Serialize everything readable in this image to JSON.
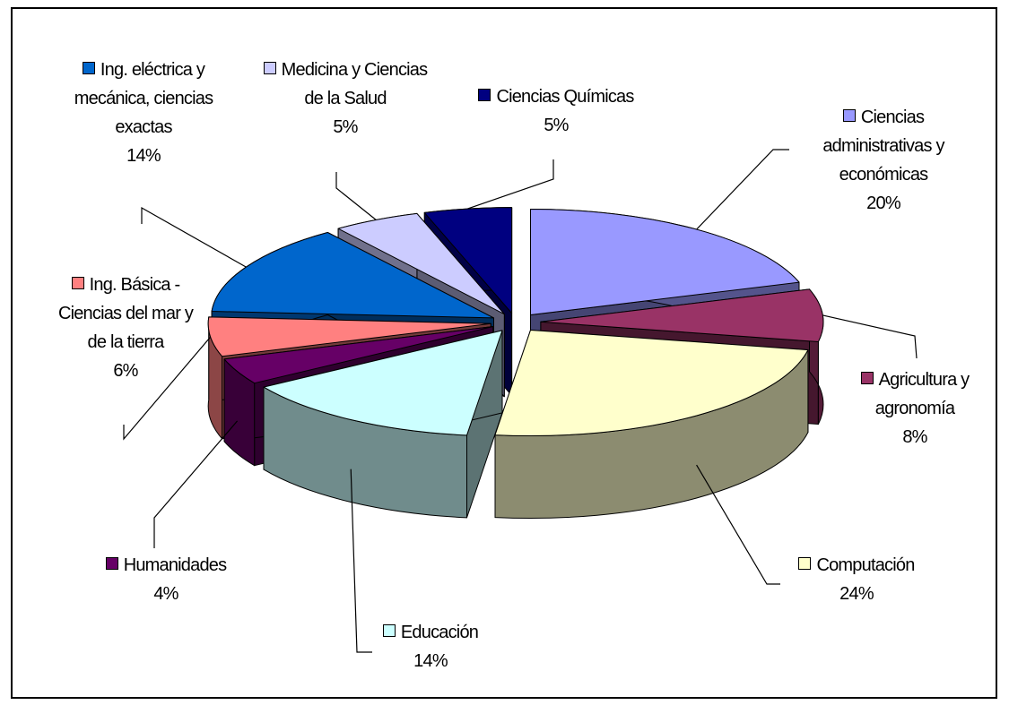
{
  "chart_data": {
    "type": "pie3d",
    "categories": [
      "Ciencias administrativas y económicas",
      "Agricultura y agronomía",
      "Computación",
      "Educación",
      "Humanidades",
      "Ing. Básica - Ciencias del mar y de la tierra",
      "Ing. eléctrica y mecánica, ciencias exactas",
      "Medicina y Ciencias de la Salud",
      "Ciencias Químicas"
    ],
    "values": [
      20,
      8,
      24,
      14,
      4,
      6,
      14,
      5,
      5
    ],
    "value_labels": [
      "20%",
      "8%",
      "24%",
      "14%",
      "4%",
      "6%",
      "14%",
      "5%",
      "5%"
    ],
    "colors": [
      "#9999ff",
      "#993366",
      "#ffffcc",
      "#ccffff",
      "#660066",
      "#ff8080",
      "#0066cc",
      "#ccccff",
      "#000080"
    ]
  }
}
